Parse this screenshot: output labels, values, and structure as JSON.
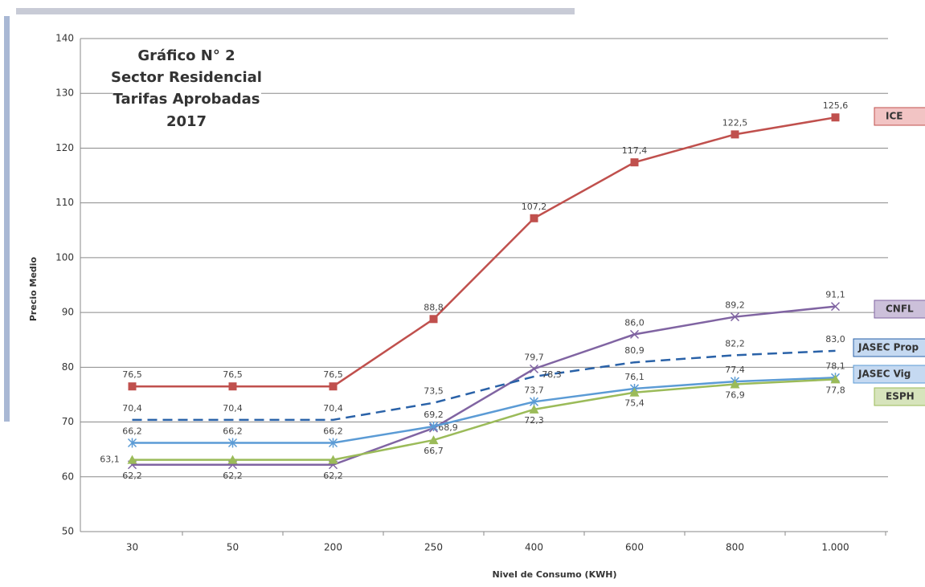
{
  "chart_data": {
    "type": "line",
    "title": [
      "Gráfico N° 2",
      "Sector Residencial",
      "Tarifas Aprobadas",
      "2017"
    ],
    "xlabel": "Nivel de Consumo (KWH)",
    "ylabel": "Precio Medio",
    "categories": [
      "30",
      "50",
      "200",
      "250",
      "400",
      "600",
      "800",
      "1.000"
    ],
    "ylim": [
      50,
      140
    ],
    "yticks": [
      50,
      60,
      70,
      80,
      90,
      100,
      110,
      120,
      130,
      140
    ],
    "grid": true,
    "series": [
      {
        "name": "ICE",
        "color": "#c0504d",
        "legend_fill": "#f2c4c4",
        "marker": "square",
        "values": [
          76.5,
          76.5,
          76.5,
          88.8,
          107.2,
          117.4,
          122.5,
          125.6
        ],
        "value_labels": [
          "76,5",
          "76,5",
          "76,5",
          "88,8",
          "107,2",
          "117,4",
          "122,5",
          "125,6"
        ]
      },
      {
        "name": "CNFL",
        "color": "#8064a2",
        "legend_fill": "#ccc0da",
        "marker": "x",
        "values": [
          62.2,
          62.2,
          62.2,
          68.9,
          79.7,
          86.0,
          89.2,
          91.1
        ],
        "value_labels": [
          "62,2",
          "62,2",
          "62,2",
          "68,9",
          "79,7",
          "86,0",
          "89,2",
          "91,1"
        ]
      },
      {
        "name": "JASEC Prop",
        "color": "#2a62a8",
        "legend_fill": "#c5d9f1",
        "marker": "none",
        "dashed": true,
        "values": [
          70.4,
          70.4,
          70.4,
          73.5,
          78.3,
          80.9,
          82.2,
          83.0
        ],
        "value_labels": [
          "70,4",
          "70,4",
          "70,4",
          "73,5",
          "78,3",
          "80,9",
          "82,2",
          "83,0"
        ]
      },
      {
        "name": "JASEC Vig",
        "color": "#5b9bd5",
        "legend_fill": "#c5d9f1",
        "marker": "asterisk",
        "values": [
          66.2,
          66.2,
          66.2,
          69.2,
          73.7,
          76.1,
          77.4,
          78.1
        ],
        "value_labels": [
          "66,2",
          "66,2",
          "66,2",
          "69,2",
          "73,7",
          "76,1",
          "77,4",
          "78,1"
        ]
      },
      {
        "name": "ESPH",
        "color": "#9bbb59",
        "legend_fill": "#d7e4bc",
        "marker": "triangle",
        "values": [
          63.1,
          63.1,
          63.1,
          66.7,
          72.3,
          75.4,
          76.9,
          77.8
        ],
        "value_labels": [
          "63,1",
          null,
          null,
          "66,7",
          "72,3",
          "75,4",
          "76,9",
          "77,8"
        ]
      }
    ]
  }
}
